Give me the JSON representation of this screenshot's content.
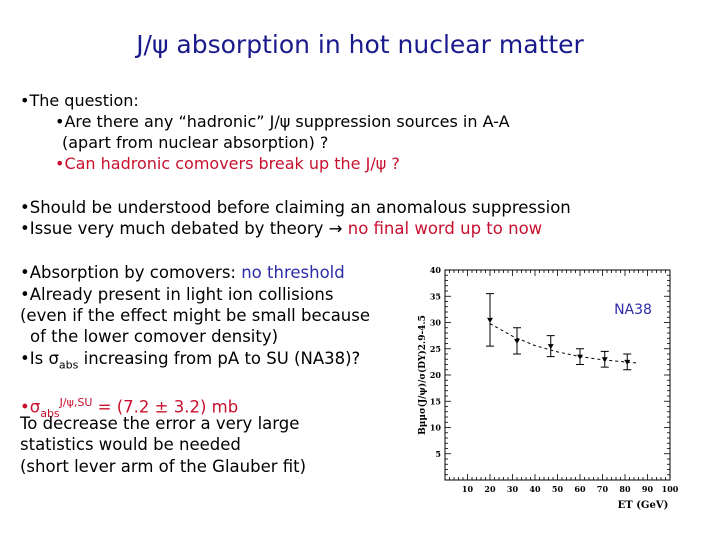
{
  "slide": {
    "title": "J/ψ absorption in hot nuclear matter",
    "q_header": "The question:",
    "q1_line1": "Are there any “hadronic” J/ψ suppression sources in A-A",
    "q1_line2": "(apart from nuclear absorption) ?",
    "q2": "Can hadronic comovers break up the J/ψ ?",
    "b1": "Should be understood before claiming an anomalous suppression",
    "b2_prefix": "Issue very much debated by theory ",
    "b2_arrow": "→",
    "b2_red": " no final word up to now",
    "c1_prefix": "Absorption by comovers: ",
    "c1_blue": "no threshold",
    "c2": "Already present in light ion collisions",
    "c2_line2": "(even if the effect might be small because",
    "c2_line3": "of the lower comover density)",
    "c3_prefix": "Is ",
    "c3_sigma": "σ",
    "c3_sub": "abs",
    "c3_suffix": " increasing from pA to SU (NA38)?",
    "d1_sigma": "σ",
    "d1_sub": "abs",
    "d1_sup": "J/ψ,SU",
    "d1_value": " = (7.2 ± 3.2) mb",
    "d2": "To decrease the error a very large",
    "d3": "statistics would be needed",
    "d4": "(short lever arm of the Glauber fit)",
    "bullet": "•"
  },
  "chart_data": {
    "type": "scatter",
    "title": "",
    "annotation": "NA38",
    "ylabel": "Bμμσ(J/ψ)/σ(DY)2.9-4.5",
    "xlabel": "ET (GeV)",
    "xlim": [
      0,
      100
    ],
    "ylim": [
      0,
      40
    ],
    "x_ticks": [
      "10",
      "20",
      "30",
      "40",
      "50",
      "60",
      "70",
      "80",
      "90",
      "100"
    ],
    "y_ticks": [
      "0",
      "5",
      "10",
      "15",
      "20",
      "25",
      "30",
      "35",
      "40"
    ],
    "points": [
      {
        "x": 20,
        "y": 30.5,
        "err": 5.0
      },
      {
        "x": 32,
        "y": 26.5,
        "err": 2.5
      },
      {
        "x": 47,
        "y": 25.5,
        "err": 2.0
      },
      {
        "x": 60,
        "y": 23.5,
        "err": 1.5
      },
      {
        "x": 71,
        "y": 23.0,
        "err": 1.5
      },
      {
        "x": 81,
        "y": 22.5,
        "err": 1.5
      }
    ],
    "fit_curve": [
      {
        "x": 20,
        "y": 29.8
      },
      {
        "x": 30,
        "y": 27.4
      },
      {
        "x": 40,
        "y": 25.6
      },
      {
        "x": 50,
        "y": 24.4
      },
      {
        "x": 60,
        "y": 23.5
      },
      {
        "x": 70,
        "y": 22.9
      },
      {
        "x": 80,
        "y": 22.5
      },
      {
        "x": 85,
        "y": 22.3
      }
    ],
    "annotation_color": "#2c2ca8"
  }
}
